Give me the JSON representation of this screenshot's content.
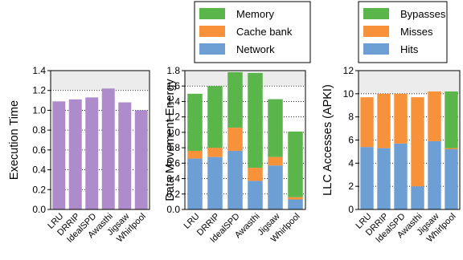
{
  "colors": {
    "purple": "#ae8ccb",
    "memory": "#5ab54a",
    "cache_bank": "#f7923a",
    "network": "#6e9fd4",
    "bypasses": "#5ab54a",
    "misses": "#f7923a",
    "hits": "#6e9fd4",
    "plot_bg": "#ececec"
  },
  "chart_data": [
    {
      "type": "bar",
      "categories": [
        "LRU",
        "DRRIP",
        "IdealSPD",
        "Awasthi",
        "Jigsaw",
        "Whirlpool"
      ],
      "values": [
        1.09,
        1.11,
        1.13,
        1.22,
        1.08,
        1.0
      ],
      "ylabel": "Execution Time",
      "ylim": [
        0,
        1.4
      ],
      "yticks": [
        "0.0",
        "0.2",
        "0.4",
        "0.6",
        "0.8",
        "1.0",
        "1.2",
        "1.4"
      ],
      "grid": true
    },
    {
      "type": "bar",
      "stacked": true,
      "categories": [
        "LRU",
        "DRRIP",
        "IdealSPD",
        "Awasthi",
        "Jigsaw",
        "Whirlpool"
      ],
      "series": [
        {
          "name": "Network",
          "values": [
            0.66,
            0.68,
            0.76,
            0.37,
            0.57,
            0.13
          ]
        },
        {
          "name": "Cache bank",
          "values": [
            0.1,
            0.12,
            0.3,
            0.17,
            0.11,
            0.03
          ]
        },
        {
          "name": "Memory",
          "values": [
            0.74,
            0.8,
            0.72,
            1.23,
            0.75,
            0.85
          ]
        }
      ],
      "ylabel": "Data Movement Energy",
      "ylim": [
        0,
        1.8
      ],
      "yticks": [
        "0.0",
        "0.2",
        "0.4",
        "0.6",
        "0.8",
        "1.0",
        "1.2",
        "1.4",
        "1.6",
        "1.8"
      ],
      "legend": "top",
      "grid": true
    },
    {
      "type": "bar",
      "stacked": true,
      "categories": [
        "LRU",
        "DRRIP",
        "IdealSPD",
        "Awasthi",
        "Jigsaw",
        "Whirlpool"
      ],
      "series": [
        {
          "name": "Hits",
          "values": [
            5.4,
            5.3,
            5.7,
            2.0,
            5.9,
            5.2
          ]
        },
        {
          "name": "Misses",
          "values": [
            4.3,
            4.7,
            4.3,
            7.7,
            4.3,
            0.1
          ]
        },
        {
          "name": "Bypasses",
          "values": [
            0.0,
            0.0,
            0.0,
            0.0,
            0.0,
            4.9
          ]
        }
      ],
      "ylabel": "LLC Accesses (APKI)",
      "ylim": [
        0,
        12
      ],
      "yticks": [
        "0",
        "2",
        "4",
        "6",
        "8",
        "10",
        "12"
      ],
      "legend": "top",
      "grid": true
    }
  ]
}
